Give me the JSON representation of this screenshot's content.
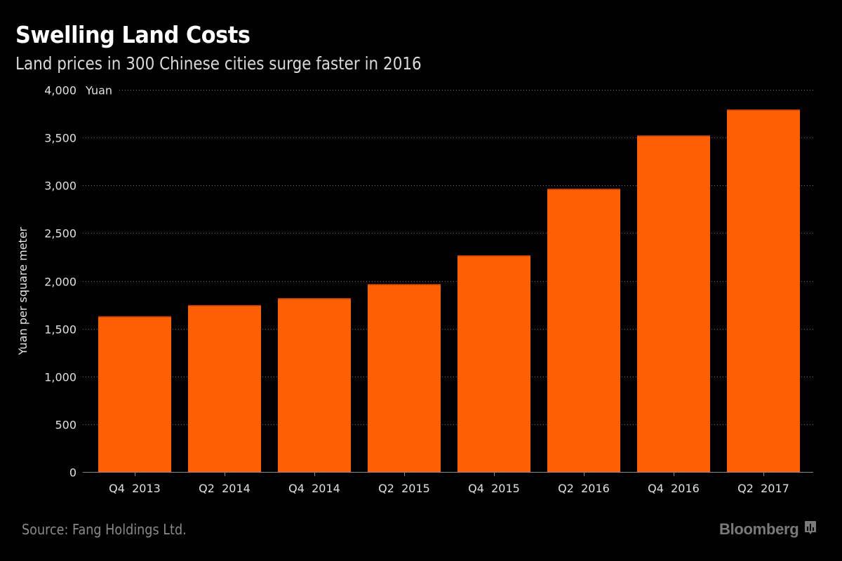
{
  "header": {
    "title": "Swelling Land Costs",
    "subtitle": "Land prices in 300 Chinese cities surge faster in 2016"
  },
  "footer": {
    "source": "Source: Fang Holdings Ltd.",
    "brand": "Bloomberg",
    "brand_icon": "bloomberg-chart-icon"
  },
  "colors": {
    "background": "#000000",
    "bar": "#ff5f00",
    "bar_top": "#b03c00",
    "grid": "#6e6e6e",
    "axis": "#7d8b99"
  },
  "chart_data": {
    "type": "bar",
    "title": "Swelling Land Costs",
    "subtitle": "Land prices in 300 Chinese cities surge faster in 2016",
    "xlabel": "",
    "ylabel": "Yuan per square meter",
    "yunit_label": "Yuan",
    "categories": [
      "Q4 2013",
      "Q2 2014",
      "Q4 2014",
      "Q2 2015",
      "Q4 2015",
      "Q2 2016",
      "Q4 2016",
      "Q2 2017"
    ],
    "values": [
      1630,
      1747,
      1820,
      1967,
      2268,
      2965,
      3523,
      3794
    ],
    "ylim": [
      0,
      4000
    ],
    "yticks": [
      0,
      500,
      1000,
      1500,
      2000,
      2500,
      3000,
      3500,
      4000
    ],
    "ytick_labels": [
      "0",
      "500",
      "1,000",
      "1,500",
      "2,000",
      "2,500",
      "3,000",
      "3,500",
      "4,000"
    ],
    "grid": true,
    "legend": "none",
    "source": "Source: Fang Holdings Ltd."
  }
}
